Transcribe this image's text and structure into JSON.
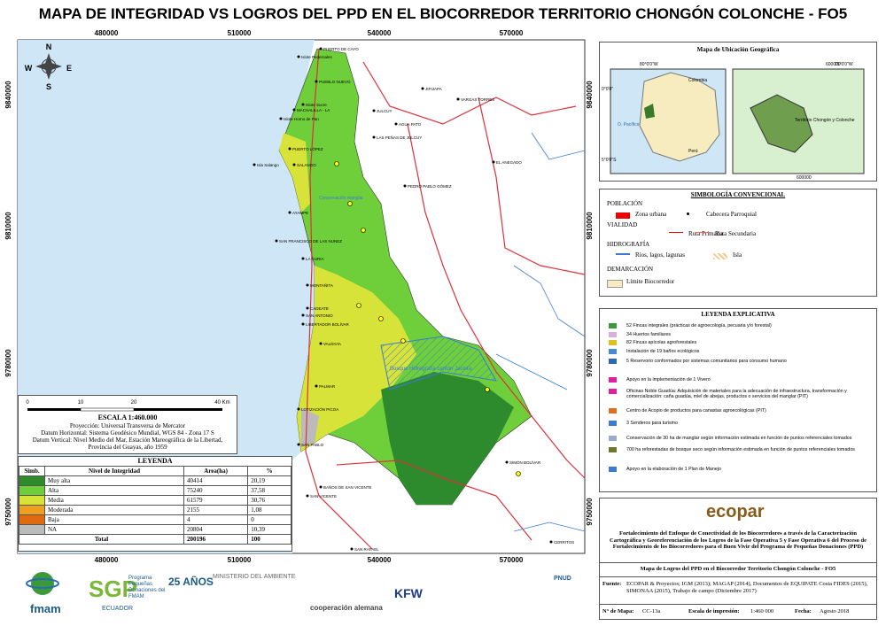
{
  "header": {
    "title": "MAPA DE INTEGRIDAD VS LOGROS DEL PPD EN EL BIOCORREDOR TERRITORIO CHONGÓN COLONCHE - FO5"
  },
  "map": {
    "x_coords": [
      "480000",
      "510000",
      "540000",
      "570000"
    ],
    "y_coords": [
      "9840000",
      "9810000",
      "9780000",
      "9750000"
    ],
    "compass": [
      "N",
      "S",
      "E",
      "W"
    ],
    "places": [
      "PUERTO DE CAYO",
      "Islote Pedernales",
      "PUEBLO NUEVO",
      "Islote Sucre",
      "MACHALILLA - LA",
      "Islote Horno de Pan",
      "PUERTO LÓPEZ",
      "Isla Salango",
      "SALANGO",
      "AYAMPE",
      "SAN FRANCISCO DE LAS NUNEZ",
      "LA CURIA",
      "MONTAÑITA",
      "CADEATE",
      "SAN ANTONIO",
      "LIBERTADOR BOLÍVAR",
      "VALDIVIA",
      "PALMAR",
      "LOTIZACIÓN PICOA",
      "SAN PABLO",
      "BAÑOS DE SAN VICENTE",
      "SAN VICENTE",
      "SAN RAFAEL",
      "CERRITOS",
      "SIMÓN BOLÍVAR",
      "JULCUY",
      "AGUA PATO",
      "LAS PEÑAS DE JULCUY",
      "PEDRO PABLO GÓMEZ",
      "VARGAS TORRES",
      "EL ANEGADO",
      "JIPIJAPA"
    ],
    "features": [
      "Conservación manglar",
      "Bosque Hidrografía cantón Jacinta"
    ]
  },
  "scale": {
    "ticks": [
      "0",
      "10",
      "20",
      "40 Km"
    ],
    "title": "ESCALA 1:460.000",
    "lines": [
      "Proyección: Universal Transversa de Mercator",
      "Datum Horizontal: Sistema Geodésico Mundial, WGS 84 - Zona 17 S",
      "Datum Vertical: Nivel Medio del Mar, Estación Mareográfica de la Libertad,",
      "Provincia del Guayas, año 1959"
    ]
  },
  "legend": {
    "title": "LEYENDA",
    "headers": [
      "Simb.",
      "Nivel de Integridad",
      "Area(ha)",
      "%"
    ],
    "rows": [
      [
        "Muy alta",
        "40414",
        "20,19"
      ],
      [
        "Alta",
        "75240",
        "37,58"
      ],
      [
        "Media",
        "61579",
        "30,76"
      ],
      [
        "Moderada",
        "2155",
        "1,08"
      ],
      [
        "Baja",
        "4",
        "0"
      ],
      [
        "NA",
        "20804",
        "10,39"
      ]
    ],
    "total": [
      "Total",
      "200196",
      "100"
    ]
  },
  "location_map": {
    "title": "Mapa de Ubicación Geográfica",
    "coords": [
      "80°0'0\"W",
      "75°0'0\"W",
      "0°0'0\"",
      "5°0'0\"S",
      "600000",
      "600000"
    ],
    "labels": [
      "Colombia",
      "Perú",
      "O. Pacífico",
      "Territorio Chongón y Colonche"
    ]
  },
  "symbology": {
    "title": "SIMBOLOGÍA CONVENCIONAL",
    "groups": [
      "POBLACIÓN",
      "VIALIDAD",
      "HIDROGRAFÍA",
      "DEMARCACIÓN"
    ],
    "items": [
      "Zona urbana",
      "Cabecera Parroquial",
      "Ruta Primaria",
      "Ruta Secundaria",
      "Ríos, lagos, lagunas",
      "Isla",
      "Límite Biocorredor"
    ]
  },
  "explanatory": {
    "title": "LEYENDA EXPLICATIVA",
    "items": [
      "52 Fincas integrales (prácticas de agroecología, pecuaria y/o forestal)",
      "34 Huertos familiares",
      "82 Fincas apícolas agroforestales",
      "Instalación de 19 baños ecológicos",
      "5 Reservorio conformados por sistemas comunitarios para consumo humano",
      "Apoyo en la implementación de 1 Vivero",
      "Oficinas Noble Guadúa: Adquisición de materiales para la adecuación de infraestructura, transformación y comercialización: caña guadúa, miel de abejas, productos o servicios del manglar (PIT)",
      "Centro de Acopio de productos para canastas agroecológicas (PIT)",
      "3 Senderos para turismo",
      "Conservación de 30 ha de manglar según información estimada en función de puntos referenciales tomados",
      "700 ha reforestadas de bosque seco según información estimada en función de puntos referenciales tomados",
      "Apoyo en la elaboración de 1 Plan de Manejo"
    ]
  },
  "credits": {
    "brand": "ecopar",
    "description": "Fortalecimiento del Enfoque de Conectividad de los Biocorredores a través de la Caracterización Cartográfica y Georeferenciación de los Logros de la Fase Operativa 5 y Fase Operativa 6 del Proceso de Fortalecimiento de los Biocorredores para el Buen Vivir del Programa de Pequeñas Donaciones (PPD)",
    "map_title": "Mapa de Logros del PPD en el Biocorredor Territorio Chongón Colonche - FO5",
    "source_label": "Fuente:",
    "source": "ECOPAR & Proyectos; IGM (2013); MAGAP (2014), Documentos de EQUIPATE Costa FIDES (2015), SIMONAA (2015), Trabajo de campo (Diciembre 2017)",
    "map_no_label": "N° de Mapa:",
    "map_no": "CC-13a",
    "print_scale_label": "Escala de impresión:",
    "print_scale": "1:460 000",
    "date_label": "Fecha:",
    "date": "Agosto 2018"
  },
  "logos": [
    "fmam",
    "SGP",
    "Programa Pequeñas Donaciones del FMAM",
    "25 AÑOS",
    "ECUADOR",
    "MINISTERIO DEL AMBIENTE",
    "cooperación alemana",
    "KFW",
    "PNUD"
  ]
}
